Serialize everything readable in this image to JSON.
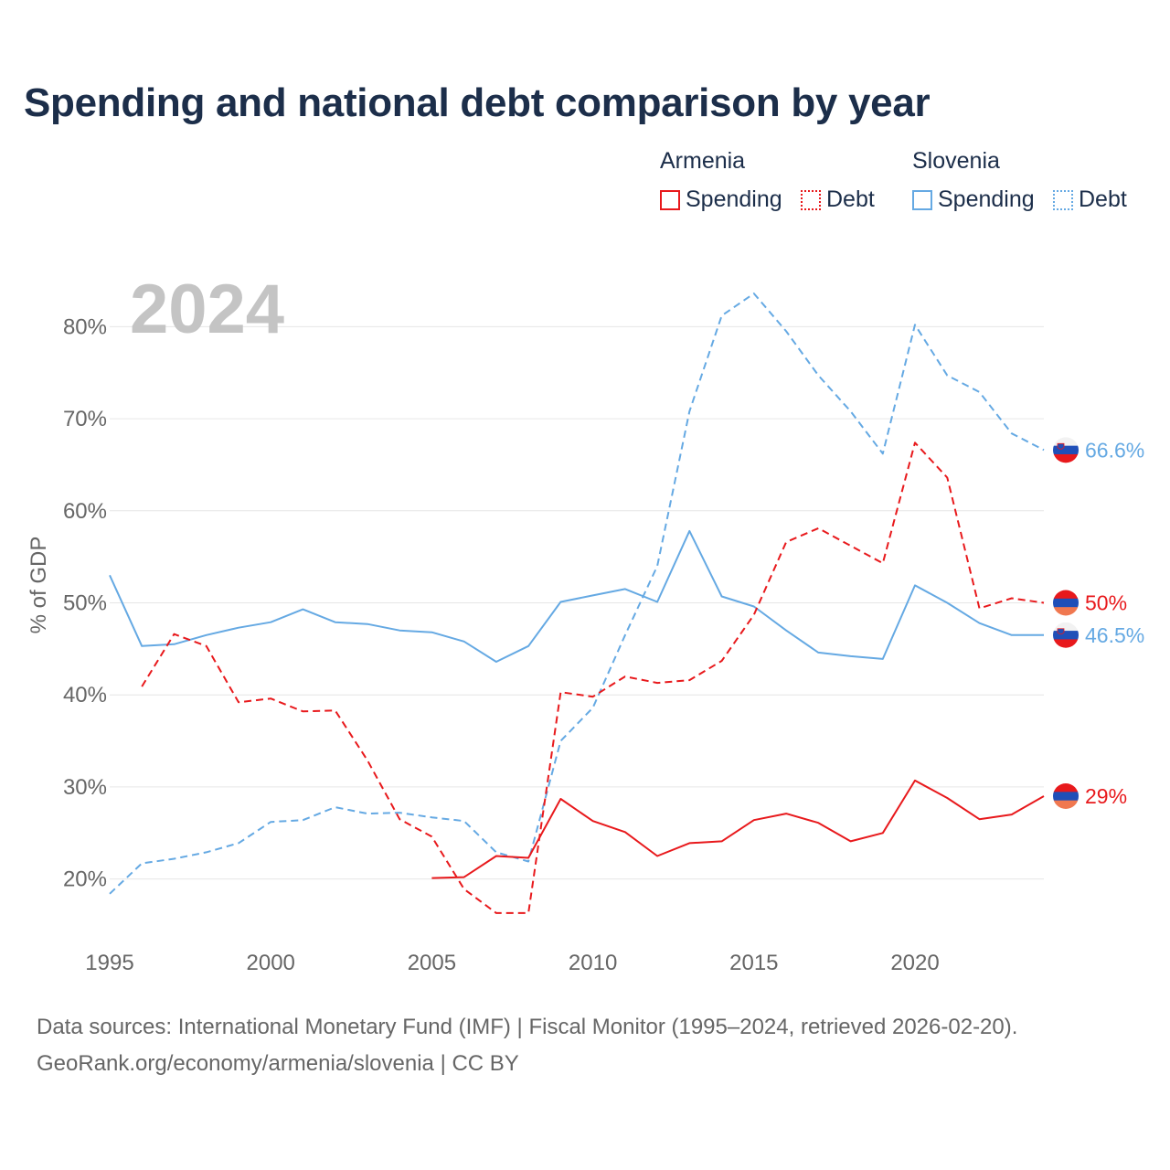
{
  "title": "Spending and national debt comparison by year",
  "legend": {
    "groups": [
      {
        "name": "Armenia",
        "color": "#e8191c",
        "items": [
          {
            "label": "Spending",
            "style": "solid"
          },
          {
            "label": "Debt",
            "style": "dotted"
          }
        ]
      },
      {
        "name": "Slovenia",
        "color": "#65a9e3",
        "items": [
          {
            "label": "Spending",
            "style": "solid"
          },
          {
            "label": "Debt",
            "style": "dotted"
          }
        ]
      }
    ]
  },
  "footer": {
    "line1": "Data sources: International Monetary Fund (IMF) | Fiscal Monitor (1995–2024, retrieved 2026-02-20).",
    "line2": "GeoRank.org/economy/armenia/slovenia | CC BY"
  },
  "chart_data": {
    "type": "line",
    "year_label": "2024",
    "ylabel": "% of GDP",
    "xlim": [
      1995,
      2024
    ],
    "ylim": [
      15,
      85
    ],
    "xticks": [
      1995,
      2000,
      2005,
      2010,
      2015,
      2020
    ],
    "yticks": [
      20,
      30,
      40,
      50,
      60,
      70,
      80
    ],
    "ytick_labels": [
      "20%",
      "30%",
      "40%",
      "50%",
      "60%",
      "70%",
      "80%"
    ],
    "grid": true,
    "series": [
      {
        "name": "Slovenia Debt",
        "country": "Slovenia",
        "metric": "Debt",
        "color": "#65a9e3",
        "dash": true,
        "end_label": "66.6%",
        "x": [
          1995,
          1996,
          1997,
          1998,
          1999,
          2000,
          2001,
          2002,
          2003,
          2004,
          2005,
          2006,
          2007,
          2008,
          2009,
          2010,
          2011,
          2012,
          2013,
          2014,
          2015,
          2016,
          2017,
          2018,
          2019,
          2020,
          2021,
          2022,
          2023,
          2024
        ],
        "values": [
          18.4,
          21.7,
          22.2,
          22.9,
          23.9,
          26.2,
          26.4,
          27.8,
          27.1,
          27.2,
          26.7,
          26.3,
          22.9,
          21.9,
          35.0,
          38.6,
          46.5,
          54.0,
          70.8,
          81.2,
          83.6,
          79.5,
          74.7,
          70.8,
          66.2,
          80.2,
          74.7,
          72.9,
          68.4,
          66.6
        ]
      },
      {
        "name": "Slovenia Spending",
        "country": "Slovenia",
        "metric": "Spending",
        "color": "#65a9e3",
        "dash": false,
        "end_label": "46.5%",
        "x": [
          1995,
          1996,
          1997,
          1998,
          1999,
          2000,
          2001,
          2002,
          2003,
          2004,
          2005,
          2006,
          2007,
          2008,
          2009,
          2010,
          2011,
          2012,
          2013,
          2014,
          2015,
          2016,
          2017,
          2018,
          2019,
          2020,
          2021,
          2022,
          2023,
          2024
        ],
        "values": [
          53.0,
          45.3,
          45.5,
          46.5,
          47.3,
          47.9,
          49.3,
          47.9,
          47.7,
          47.0,
          46.8,
          45.8,
          43.6,
          45.3,
          50.1,
          50.8,
          51.5,
          50.1,
          57.8,
          50.7,
          49.6,
          47.0,
          44.6,
          44.2,
          43.9,
          51.9,
          50.0,
          47.8,
          46.5,
          46.5
        ]
      },
      {
        "name": "Armenia Debt",
        "country": "Armenia",
        "metric": "Debt",
        "color": "#e8191c",
        "dash": true,
        "end_label": "50%",
        "x": [
          1996,
          1997,
          1998,
          1999,
          2000,
          2001,
          2002,
          2003,
          2004,
          2005,
          2006,
          2007,
          2008,
          2009,
          2010,
          2011,
          2012,
          2013,
          2014,
          2015,
          2016,
          2017,
          2018,
          2019,
          2020,
          2021,
          2022,
          2023,
          2024
        ],
        "values": [
          40.9,
          46.6,
          45.3,
          39.2,
          39.6,
          38.2,
          38.3,
          32.9,
          26.5,
          24.6,
          18.9,
          16.3,
          16.3,
          40.3,
          39.8,
          42.0,
          41.3,
          41.6,
          43.7,
          48.7,
          56.6,
          58.1,
          56.2,
          54.3,
          67.4,
          63.6,
          49.4,
          50.5,
          50.0
        ]
      },
      {
        "name": "Armenia Spending",
        "country": "Armenia",
        "metric": "Spending",
        "color": "#e8191c",
        "dash": false,
        "end_label": "29%",
        "x": [
          2005,
          2006,
          2007,
          2008,
          2009,
          2010,
          2011,
          2012,
          2013,
          2014,
          2015,
          2016,
          2017,
          2018,
          2019,
          2020,
          2021,
          2022,
          2023,
          2024
        ],
        "values": [
          20.1,
          20.2,
          22.5,
          22.3,
          28.7,
          26.3,
          25.1,
          22.5,
          23.9,
          24.1,
          26.4,
          27.1,
          26.1,
          24.1,
          25.0,
          30.7,
          28.8,
          26.5,
          27.0,
          29.0
        ]
      }
    ]
  }
}
